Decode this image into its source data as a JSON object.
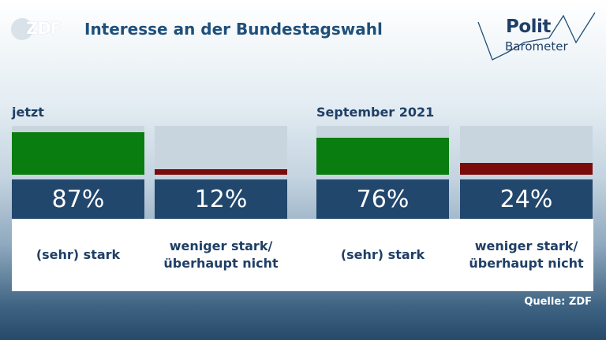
{
  "header": {
    "brand": "ZDF",
    "title": "Interesse an der Bundestagswahl",
    "logo_line1": "Polit",
    "logo_line2": "Barometer"
  },
  "chart_data": [
    {
      "type": "bar",
      "group_label": "jetzt",
      "categories": [
        "(sehr) stark",
        "weniger stark/ überhaupt nicht"
      ],
      "values": [
        87,
        12
      ],
      "value_labels": [
        "87%",
        "12%"
      ],
      "unit": "%",
      "ylim": [
        0,
        100
      ],
      "colors": [
        "#0a7d10",
        "#7a0b0b"
      ]
    },
    {
      "type": "bar",
      "group_label": "September 2021",
      "categories": [
        "(sehr) stark",
        "weniger stark/ überhaupt nicht"
      ],
      "values": [
        76,
        24
      ],
      "value_labels": [
        "76%",
        "24%"
      ],
      "unit": "%",
      "ylim": [
        0,
        100
      ],
      "colors": [
        "#0a7d10",
        "#7a0b0b"
      ]
    }
  ],
  "source": "Quelle: ZDF"
}
